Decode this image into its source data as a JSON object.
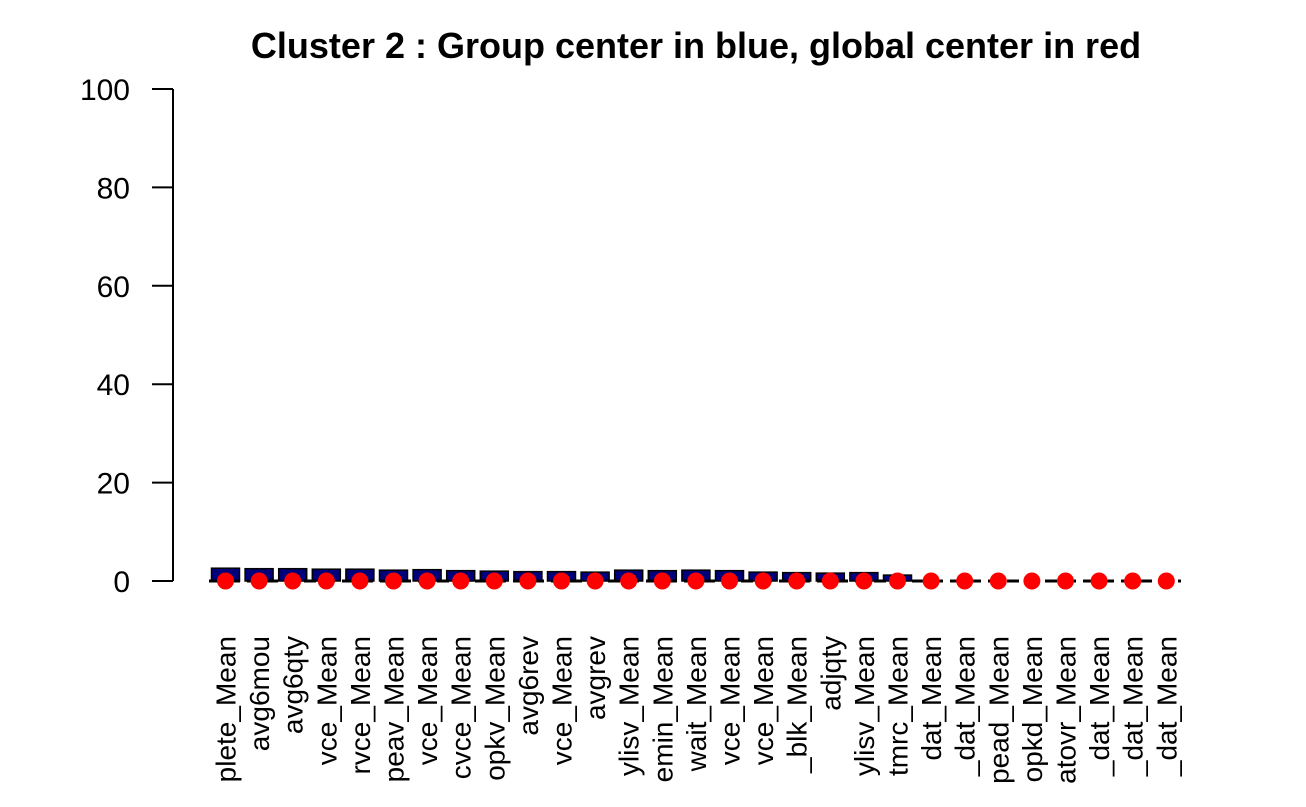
{
  "chart_data": {
    "type": "bar",
    "title": "Cluster 2 : Group center in blue, global center in red",
    "xlabel": "",
    "ylabel": "",
    "ylim": [
      0,
      100
    ],
    "yticks": [
      0,
      20,
      40,
      60,
      80,
      100
    ],
    "grid": false,
    "legend": "none",
    "categories": [
      "plete_Mean",
      "avg6mou",
      "avg6qty",
      "vce_Mean",
      "rvce_Mean",
      "peav_Mean",
      "vce_Mean",
      "cvce_Mean",
      "opkv_Mean",
      "avg6rev",
      "vce_Mean",
      "avgrev",
      "ylisv_Mean",
      "emin_Mean",
      "wait_Mean",
      "vce_Mean",
      "vce_Mean",
      "_blk_Mean",
      "adjqty",
      "ylisv_Mean",
      "tmrc_Mean",
      "dat_Mean",
      "_dat_Mean",
      "pead_Mean",
      "opkd_Mean",
      "atovr_Mean",
      "_dat_Mean",
      "_dat_Mean",
      "_dat_Mean"
    ],
    "series": [
      {
        "role": "group center",
        "color": "#00007a",
        "values": [
          2.6,
          2.5,
          2.5,
          2.4,
          2.4,
          2.2,
          2.3,
          2.1,
          2.0,
          1.9,
          1.9,
          1.8,
          2.2,
          2.1,
          2.2,
          2.1,
          1.8,
          1.7,
          1.6,
          1.7,
          1.2,
          0.0,
          0.0,
          0.0,
          0.0,
          0.0,
          0.0,
          0.0,
          0.0
        ]
      },
      {
        "role": "global center",
        "color": "#ff0000",
        "values": [
          0,
          0,
          0,
          0,
          0,
          0,
          0,
          0,
          0,
          0,
          0,
          0,
          0,
          0,
          0,
          0,
          0,
          0,
          0,
          0,
          0,
          0,
          0,
          0,
          0,
          0,
          0,
          0,
          0
        ]
      }
    ]
  }
}
